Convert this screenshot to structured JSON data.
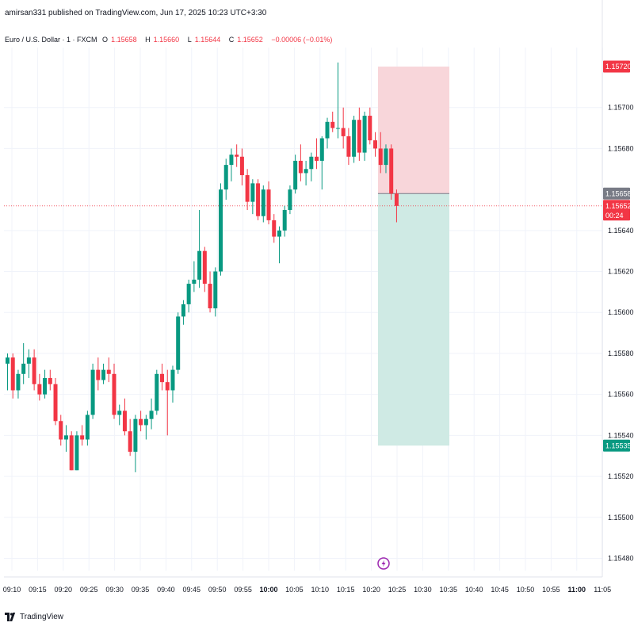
{
  "header": {
    "published_by": "amirsan331 published on TradingView.com, Jun 17, 2025 10:23 UTC+3:30"
  },
  "legend": {
    "symbol": "Euro / U.S. Dollar · 1 · FXCM",
    "open_label": "O",
    "open": "1.15658",
    "high_label": "H",
    "high": "1.15660",
    "low_label": "L",
    "low": "1.15644",
    "close_label": "C",
    "close": "1.15652",
    "change": "−0.00006 (−0.01%)"
  },
  "footer": {
    "brand": "TradingView",
    "logo": "tradingview-logo-icon"
  },
  "colors": {
    "up": "#089981",
    "down": "#f23645",
    "stop_zone": "#f8d6da",
    "target_zone": "#cfeae4",
    "grid": "#f0f3fa",
    "axis_text": "#131722",
    "entry_label_bg": "#787b86"
  },
  "chart_data": {
    "type": "candlestick",
    "instrument": "Euro / U.S. Dollar",
    "timeframe": "1",
    "x_tick_labels": [
      "09:10",
      "09:15",
      "09:20",
      "09:25",
      "09:30",
      "09:35",
      "09:40",
      "09:45",
      "09:50",
      "09:55",
      "10:00",
      "10:05",
      "10:10",
      "10:15",
      "10:20",
      "10:25",
      "10:30",
      "10:35",
      "10:40",
      "10:45",
      "10:50",
      "10:55",
      "11:00",
      "11:05"
    ],
    "bold_x_ticks": [
      "10:00",
      "11:00"
    ],
    "y_tick_labels": [
      "1.15480",
      "1.15500",
      "1.15520",
      "1.15540",
      "1.15560",
      "1.15580",
      "1.15600",
      "1.15620",
      "1.15640",
      "1.15680",
      "1.15700"
    ],
    "ylim": [
      1.15474,
      1.15726
    ],
    "candles": [
      {
        "o": 1.15575,
        "h": 1.1558,
        "l": 1.15562,
        "c": 1.15578
      },
      {
        "o": 1.15578,
        "h": 1.1558,
        "l": 1.15558,
        "c": 1.15562
      },
      {
        "o": 1.15562,
        "h": 1.15572,
        "l": 1.15558,
        "c": 1.1557
      },
      {
        "o": 1.1557,
        "h": 1.15585,
        "l": 1.15565,
        "c": 1.15575
      },
      {
        "o": 1.15575,
        "h": 1.15582,
        "l": 1.15568,
        "c": 1.15578
      },
      {
        "o": 1.15578,
        "h": 1.15582,
        "l": 1.15562,
        "c": 1.15565
      },
      {
        "o": 1.15565,
        "h": 1.1557,
        "l": 1.15557,
        "c": 1.1556
      },
      {
        "o": 1.1556,
        "h": 1.15572,
        "l": 1.15558,
        "c": 1.15568
      },
      {
        "o": 1.15568,
        "h": 1.15572,
        "l": 1.15562,
        "c": 1.15565
      },
      {
        "o": 1.15565,
        "h": 1.15568,
        "l": 1.15545,
        "c": 1.15547
      },
      {
        "o": 1.15547,
        "h": 1.1555,
        "l": 1.15535,
        "c": 1.15538
      },
      {
        "o": 1.15538,
        "h": 1.15545,
        "l": 1.15532,
        "c": 1.1554
      },
      {
        "o": 1.1554,
        "h": 1.15542,
        "l": 1.15523,
        "c": 1.15523
      },
      {
        "o": 1.15523,
        "h": 1.15542,
        "l": 1.15523,
        "c": 1.1554
      },
      {
        "o": 1.1554,
        "h": 1.15545,
        "l": 1.15535,
        "c": 1.15538
      },
      {
        "o": 1.15538,
        "h": 1.15552,
        "l": 1.15535,
        "c": 1.1555
      },
      {
        "o": 1.1555,
        "h": 1.15575,
        "l": 1.15548,
        "c": 1.15572
      },
      {
        "o": 1.15572,
        "h": 1.15578,
        "l": 1.15562,
        "c": 1.15567
      },
      {
        "o": 1.15567,
        "h": 1.15575,
        "l": 1.15565,
        "c": 1.15572
      },
      {
        "o": 1.15572,
        "h": 1.15578,
        "l": 1.15566,
        "c": 1.1557
      },
      {
        "o": 1.1557,
        "h": 1.15575,
        "l": 1.15548,
        "c": 1.1555
      },
      {
        "o": 1.1555,
        "h": 1.15555,
        "l": 1.15545,
        "c": 1.15552
      },
      {
        "o": 1.15552,
        "h": 1.15558,
        "l": 1.1554,
        "c": 1.15542
      },
      {
        "o": 1.15542,
        "h": 1.15548,
        "l": 1.1553,
        "c": 1.15532
      },
      {
        "o": 1.15532,
        "h": 1.1555,
        "l": 1.15522,
        "c": 1.15548
      },
      {
        "o": 1.15548,
        "h": 1.15552,
        "l": 1.15542,
        "c": 1.15545
      },
      {
        "o": 1.15545,
        "h": 1.1555,
        "l": 1.15538,
        "c": 1.15548
      },
      {
        "o": 1.15548,
        "h": 1.15558,
        "l": 1.15543,
        "c": 1.15552
      },
      {
        "o": 1.15552,
        "h": 1.15572,
        "l": 1.1555,
        "c": 1.1557
      },
      {
        "o": 1.1557,
        "h": 1.15575,
        "l": 1.15562,
        "c": 1.15566
      },
      {
        "o": 1.15566,
        "h": 1.15572,
        "l": 1.1554,
        "c": 1.15562
      },
      {
        "o": 1.15562,
        "h": 1.15574,
        "l": 1.15556,
        "c": 1.15572
      },
      {
        "o": 1.15572,
        "h": 1.156,
        "l": 1.1557,
        "c": 1.15598
      },
      {
        "o": 1.15598,
        "h": 1.15606,
        "l": 1.15594,
        "c": 1.15604
      },
      {
        "o": 1.15604,
        "h": 1.15616,
        "l": 1.156,
        "c": 1.15614
      },
      {
        "o": 1.15614,
        "h": 1.15625,
        "l": 1.1561,
        "c": 1.15616
      },
      {
        "o": 1.15616,
        "h": 1.1565,
        "l": 1.15612,
        "c": 1.1563
      },
      {
        "o": 1.1563,
        "h": 1.15632,
        "l": 1.1561,
        "c": 1.15614
      },
      {
        "o": 1.15614,
        "h": 1.1562,
        "l": 1.156,
        "c": 1.15602
      },
      {
        "o": 1.15602,
        "h": 1.15622,
        "l": 1.15598,
        "c": 1.1562
      },
      {
        "o": 1.1562,
        "h": 1.15663,
        "l": 1.15618,
        "c": 1.1566
      },
      {
        "o": 1.1566,
        "h": 1.15675,
        "l": 1.15655,
        "c": 1.15672
      },
      {
        "o": 1.15672,
        "h": 1.1568,
        "l": 1.15664,
        "c": 1.15677
      },
      {
        "o": 1.15677,
        "h": 1.15682,
        "l": 1.15671,
        "c": 1.15676
      },
      {
        "o": 1.15676,
        "h": 1.1568,
        "l": 1.15662,
        "c": 1.15667
      },
      {
        "o": 1.15667,
        "h": 1.1567,
        "l": 1.1565,
        "c": 1.15654
      },
      {
        "o": 1.15654,
        "h": 1.15665,
        "l": 1.15648,
        "c": 1.15663
      },
      {
        "o": 1.15663,
        "h": 1.15665,
        "l": 1.15645,
        "c": 1.15647
      },
      {
        "o": 1.15647,
        "h": 1.15662,
        "l": 1.15644,
        "c": 1.1566
      },
      {
        "o": 1.1566,
        "h": 1.15664,
        "l": 1.15643,
        "c": 1.15645
      },
      {
        "o": 1.15645,
        "h": 1.15648,
        "l": 1.15634,
        "c": 1.15637
      },
      {
        "o": 1.15637,
        "h": 1.15642,
        "l": 1.15624,
        "c": 1.1564
      },
      {
        "o": 1.1564,
        "h": 1.15652,
        "l": 1.15637,
        "c": 1.1565
      },
      {
        "o": 1.1565,
        "h": 1.15662,
        "l": 1.15648,
        "c": 1.1566
      },
      {
        "o": 1.1566,
        "h": 1.15677,
        "l": 1.15658,
        "c": 1.15674
      },
      {
        "o": 1.15674,
        "h": 1.15682,
        "l": 1.15664,
        "c": 1.15668
      },
      {
        "o": 1.15668,
        "h": 1.15674,
        "l": 1.15662,
        "c": 1.1567
      },
      {
        "o": 1.1567,
        "h": 1.15678,
        "l": 1.15664,
        "c": 1.15676
      },
      {
        "o": 1.15676,
        "h": 1.15685,
        "l": 1.1567,
        "c": 1.15674
      },
      {
        "o": 1.15674,
        "h": 1.15686,
        "l": 1.1566,
        "c": 1.15685
      },
      {
        "o": 1.15685,
        "h": 1.15695,
        "l": 1.1568,
        "c": 1.15693
      },
      {
        "o": 1.15693,
        "h": 1.15698,
        "l": 1.15688,
        "c": 1.1569
      },
      {
        "o": 1.1569,
        "h": 1.15722,
        "l": 1.15685,
        "c": 1.1569
      },
      {
        "o": 1.1569,
        "h": 1.157,
        "l": 1.1568,
        "c": 1.15686
      },
      {
        "o": 1.15686,
        "h": 1.1569,
        "l": 1.15672,
        "c": 1.15676
      },
      {
        "o": 1.15676,
        "h": 1.15696,
        "l": 1.15673,
        "c": 1.15694
      },
      {
        "o": 1.15694,
        "h": 1.157,
        "l": 1.15674,
        "c": 1.15678
      },
      {
        "o": 1.15678,
        "h": 1.15698,
        "l": 1.15674,
        "c": 1.15696
      },
      {
        "o": 1.15696,
        "h": 1.157,
        "l": 1.15682,
        "c": 1.15684
      },
      {
        "o": 1.15684,
        "h": 1.15688,
        "l": 1.15676,
        "c": 1.1568
      },
      {
        "o": 1.1568,
        "h": 1.15688,
        "l": 1.15668,
        "c": 1.15672
      },
      {
        "o": 1.15672,
        "h": 1.15682,
        "l": 1.15668,
        "c": 1.1568
      },
      {
        "o": 1.1568,
        "h": 1.15682,
        "l": 1.15655,
        "c": 1.15658
      },
      {
        "o": 1.15658,
        "h": 1.1566,
        "l": 1.15644,
        "c": 1.15652
      }
    ],
    "position": {
      "type": "short",
      "entry": 1.15658,
      "stop": 1.1572,
      "target": 1.15535
    },
    "price_labels": {
      "stop": "1.15720",
      "entry": "1.15658",
      "current": "1.15652",
      "countdown": "00:24",
      "target": "1.15535"
    }
  }
}
